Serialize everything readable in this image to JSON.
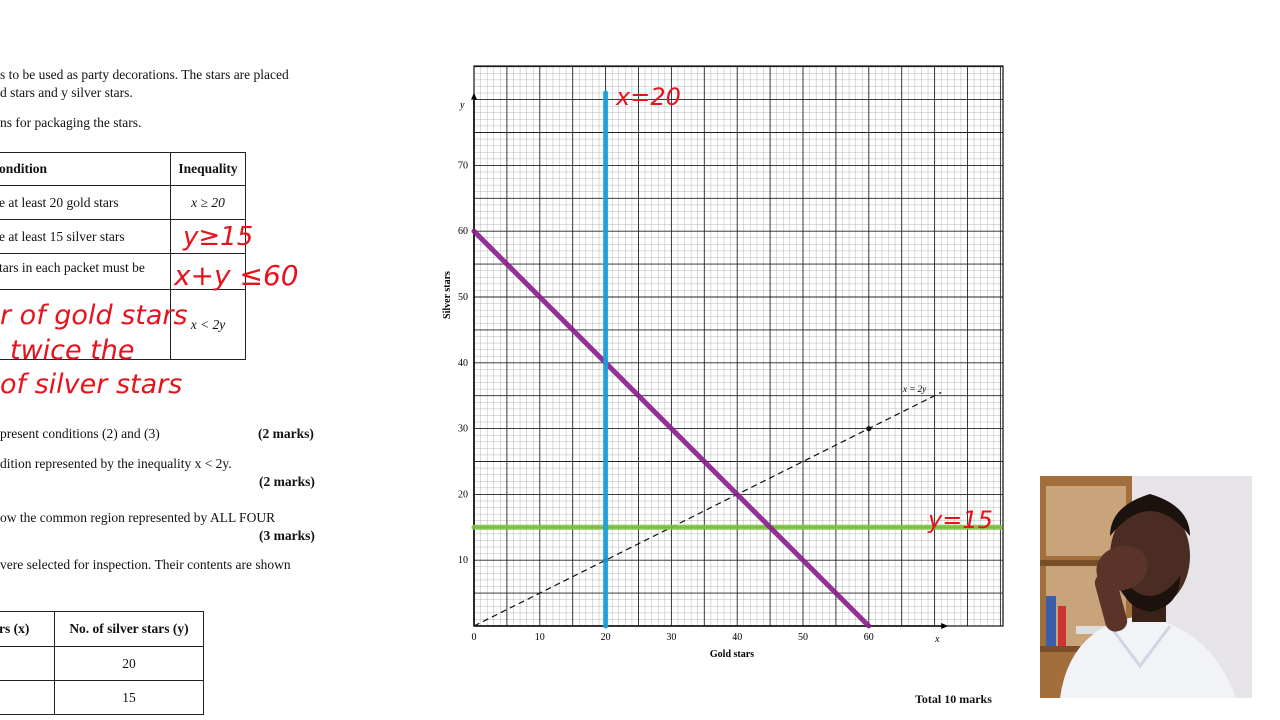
{
  "question": {
    "intro_line1": "s to be used as party decorations.  The stars are placed",
    "intro_line2": "d stars and y silver stars.",
    "intro_line3": "ns for packaging the stars.",
    "table": {
      "headers": [
        "ondition",
        "Inequality"
      ],
      "rows": [
        {
          "condition": "e at least 20 gold stars",
          "inequality": "x ≥ 20"
        },
        {
          "condition": "e at least 15 silver stars",
          "inequality": ""
        },
        {
          "condition": "tars in each packet must be",
          "inequality": ""
        },
        {
          "condition": "",
          "inequality": "x < 2y"
        }
      ]
    },
    "part_a": "present conditions (2) and (3)",
    "part_a_marks": "(2 marks)",
    "part_b": "dition represented by the inequality x < 2y.",
    "part_b_marks": "(2 marks)",
    "part_c": "ow the common region represented by ALL FOUR",
    "part_c_marks": "(3 marks)",
    "part_d": "vere selected for inspection.  Their contents are shown",
    "table2": {
      "headers": [
        "rs (x)",
        "No. of silver stars (y)"
      ],
      "rows": [
        [
          "",
          "20"
        ],
        [
          "",
          "15"
        ]
      ]
    },
    "total_marks": "Total 10 marks"
  },
  "handwriting": {
    "y_ineq": "y≥15",
    "sum_ineq": "x+y ≤60",
    "note_line1": "r of gold stars",
    "note_line2": "twice  the",
    "note_line3": "of silver stars",
    "label_x20": "x=20",
    "label_y15": "y=15"
  },
  "chart_data": {
    "type": "line",
    "xlabel": "Gold stars",
    "ylabel": "Silver stars",
    "x_axis_letter": "x",
    "y_axis_letter": "y",
    "xlim": [
      0,
      80
    ],
    "ylim": [
      0,
      85
    ],
    "xticks": [
      0,
      10,
      20,
      30,
      40,
      50,
      60
    ],
    "yticks": [
      10,
      20,
      30,
      40,
      50,
      60,
      70
    ],
    "grid": true,
    "series": [
      {
        "name": "x = 2y",
        "style": "dashed",
        "color": "#111111",
        "points": [
          [
            0,
            0
          ],
          [
            71,
            35.5
          ]
        ],
        "marked_points": [
          [
            20,
            10
          ],
          [
            60,
            30
          ]
        ]
      },
      {
        "name": "x=20",
        "style": "solid",
        "color": "#1aa0dc",
        "points": [
          [
            20,
            0
          ],
          [
            20,
            81
          ]
        ]
      },
      {
        "name": "y=15",
        "style": "solid",
        "color": "#7dc242",
        "points": [
          [
            0,
            15
          ],
          [
            80,
            15
          ]
        ]
      },
      {
        "name": "x+y ≤60",
        "style": "solid",
        "color": "#8b1f8f",
        "points": [
          [
            0,
            60
          ],
          [
            60,
            0
          ]
        ]
      }
    ],
    "colors": {
      "grid_major": "#222222",
      "grid_minor": "#9a9a9a",
      "hand": "#e8121c"
    }
  },
  "video": {
    "colors": {
      "wall": "#e8e6ea",
      "shelf": "#9b6a3a",
      "skin": "#4a2c22",
      "shirt": "#f0f2f6"
    }
  }
}
